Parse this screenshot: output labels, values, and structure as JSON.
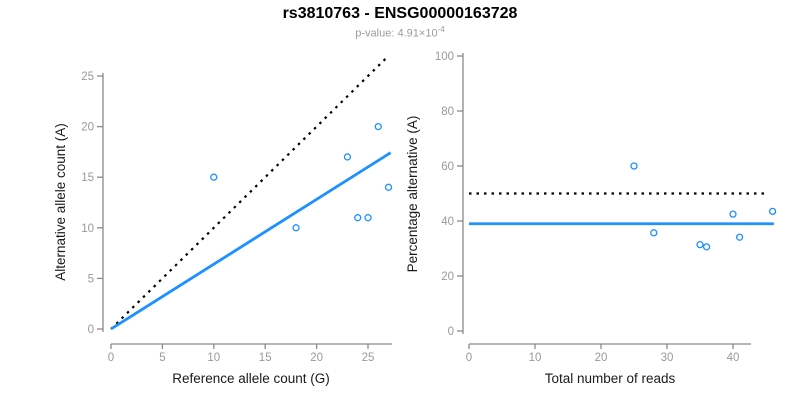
{
  "page": {
    "title": "rs3810763 - ENSG00000163728",
    "subtitle_prefix": "p-value: ",
    "subtitle_coefficient": "4.91",
    "subtitle_times": "×",
    "subtitle_base": "10",
    "subtitle_exponent": "-4"
  },
  "colors": {
    "accent_blue": "#1E90FF",
    "dotted_black": "#000000",
    "axis_line": "#8a8a8a",
    "tick_label": "#999999",
    "axis_title": "#1a1a1a",
    "subtitle_gray": "#9a9a9a"
  },
  "chart_data": [
    {
      "type": "scatter",
      "name": "allele-counts-plot",
      "xlabel": "Reference allele count (G)",
      "ylabel": "Alternative allele count (A)",
      "xlim": [
        0,
        27.2
      ],
      "ylim": [
        0,
        28
      ],
      "xticks": [
        0,
        5,
        10,
        15,
        20,
        25
      ],
      "yticks": [
        0,
        5,
        10,
        15,
        20,
        25
      ],
      "grid": false,
      "legend": false,
      "points": [
        [
          10,
          15
        ],
        [
          18,
          10
        ],
        [
          23,
          17
        ],
        [
          24,
          11
        ],
        [
          25,
          11
        ],
        [
          26,
          20
        ],
        [
          27,
          14
        ]
      ],
      "lines": [
        {
          "name": "identity-line",
          "style": "dotted",
          "color": "#000000",
          "x1": 0,
          "y1": 0,
          "x2": 26.9,
          "y2": 26.9
        },
        {
          "name": "fit-line",
          "style": "solid",
          "color": "#1E90FF",
          "x1": 0,
          "y1": 0,
          "x2": 27.2,
          "y2": 17.42
        }
      ]
    },
    {
      "type": "scatter",
      "name": "percentage-vs-reads-plot",
      "xlabel": "Total number of reads",
      "ylabel": "Percentage alternative (A)",
      "xlim": [
        0,
        46.2
      ],
      "ylim": [
        0,
        104
      ],
      "xticks": [
        0,
        10,
        20,
        30,
        40
      ],
      "yticks": [
        0,
        20,
        40,
        60,
        80,
        100
      ],
      "grid": false,
      "legend": false,
      "points": [
        [
          25,
          60
        ],
        [
          28,
          35.7
        ],
        [
          35,
          31.4
        ],
        [
          36,
          30.6
        ],
        [
          40,
          42.5
        ],
        [
          41,
          34.1
        ],
        [
          46,
          43.5
        ]
      ],
      "lines": [
        {
          "name": "expected-50-line",
          "style": "dotted",
          "color": "#000000",
          "x1": 0,
          "y1": 50,
          "x2": 45.3,
          "y2": 50
        },
        {
          "name": "mean-percentage-line",
          "style": "solid",
          "color": "#1E90FF",
          "x1": 0,
          "y1": 39,
          "x2": 46.2,
          "y2": 39
        }
      ]
    }
  ]
}
